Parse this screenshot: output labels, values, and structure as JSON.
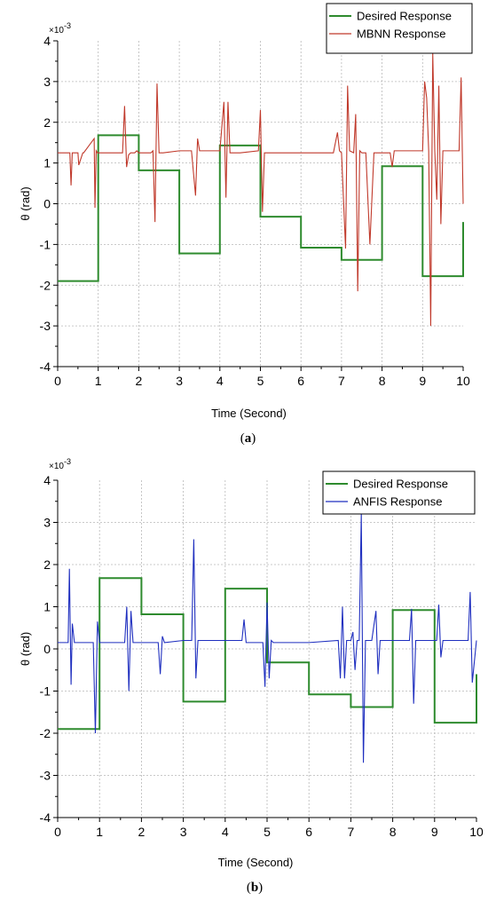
{
  "chart_data": [
    {
      "type": "line",
      "caption": "(a)",
      "xlabel": "Time (Second)",
      "ylabel": "θ (rad)",
      "y_multiplier": "×10",
      "y_multiplier_exp": "-3",
      "xlim": [
        0,
        10
      ],
      "ylim": [
        -4,
        4
      ],
      "xticks": [
        "0",
        "1",
        "2",
        "3",
        "4",
        "5",
        "6",
        "7",
        "8",
        "9",
        "10"
      ],
      "yticks": [
        "-4",
        "-3",
        "-2",
        "-1",
        "0",
        "1",
        "2",
        "3",
        "4"
      ],
      "grid": true,
      "legend_position": "top-right",
      "series": [
        {
          "name": "Desired Response",
          "color": "#2e8b2e",
          "step": true,
          "x": [
            0,
            1,
            2,
            3,
            4,
            5,
            6,
            7,
            8,
            9,
            10
          ],
          "y": [
            -1.9,
            1.68,
            0.82,
            -1.22,
            1.43,
            -0.32,
            -1.08,
            -1.38,
            0.92,
            -1.78,
            -0.45
          ]
        },
        {
          "name": "MBNN Response",
          "color": "#c0392b",
          "step": false,
          "x": [
            0,
            0.3,
            0.33,
            0.36,
            0.5,
            0.52,
            0.62,
            0.64,
            0.9,
            0.92,
            0.95,
            0.98,
            1.0,
            1.6,
            1.65,
            1.7,
            1.75,
            1.8,
            1.85,
            1.9,
            1.95,
            2.0,
            2.3,
            2.35,
            2.4,
            2.45,
            2.5,
            2.55,
            2.6,
            3.0,
            3.3,
            3.4,
            3.45,
            3.5,
            4.0,
            4.1,
            4.15,
            4.2,
            4.25,
            4.3,
            4.4,
            4.5,
            4.95,
            5.0,
            5.05,
            5.1,
            5.15,
            5.5,
            5.7,
            5.75,
            5.8,
            6.0,
            6.8,
            6.9,
            6.95,
            7.0,
            7.1,
            7.15,
            7.2,
            7.3,
            7.35,
            7.4,
            7.45,
            7.5,
            7.6,
            7.7,
            7.8,
            8.0,
            8.2,
            8.25,
            8.3,
            8.35,
            9.0,
            9.05,
            9.1,
            9.15,
            9.2,
            9.25,
            9.3,
            9.35,
            9.4,
            9.45,
            9.5,
            9.7,
            9.8,
            9.9,
            9.95,
            10.0
          ],
          "y": [
            1.25,
            1.25,
            0.45,
            1.25,
            1.25,
            0.95,
            1.25,
            1.25,
            1.6,
            -0.1,
            1.3,
            1.25,
            1.25,
            1.25,
            2.4,
            0.9,
            1.2,
            1.25,
            1.25,
            1.25,
            1.3,
            1.25,
            1.25,
            1.3,
            -0.45,
            2.95,
            1.25,
            1.25,
            1.25,
            1.3,
            1.3,
            0.2,
            1.6,
            1.3,
            1.3,
            2.5,
            0.15,
            2.5,
            1.25,
            1.25,
            1.25,
            1.25,
            1.3,
            2.3,
            -0.2,
            1.25,
            1.25,
            1.25,
            1.25,
            1.25,
            1.25,
            1.25,
            1.25,
            1.75,
            1.3,
            1.25,
            -1.1,
            2.9,
            1.3,
            1.25,
            2.2,
            -2.15,
            1.3,
            1.25,
            1.25,
            -1.0,
            1.25,
            1.25,
            1.25,
            0.9,
            1.3,
            1.3,
            1.3,
            3.0,
            2.6,
            1.3,
            -3.0,
            3.7,
            1.3,
            0.1,
            2.9,
            -0.5,
            1.3,
            1.3,
            1.3,
            1.3,
            3.1,
            0.0
          ]
        }
      ]
    },
    {
      "type": "line",
      "caption": "(b)",
      "xlabel": "Time (Second)",
      "ylabel": "θ (rad)",
      "y_multiplier": "×10",
      "y_multiplier_exp": "-3",
      "xlim": [
        0,
        10
      ],
      "ylim": [
        -4,
        4
      ],
      "xticks": [
        "0",
        "1",
        "2",
        "3",
        "4",
        "5",
        "6",
        "7",
        "8",
        "9",
        "10"
      ],
      "yticks": [
        "-4",
        "-3",
        "-2",
        "-1",
        "0",
        "1",
        "2",
        "3",
        "4"
      ],
      "grid": true,
      "legend_position": "top-right",
      "series": [
        {
          "name": "Desired Response",
          "color": "#2e8b2e",
          "step": true,
          "x": [
            0,
            1,
            2,
            3,
            4,
            5,
            6,
            7,
            8,
            9,
            10
          ],
          "y": [
            -1.9,
            1.68,
            0.82,
            -1.25,
            1.43,
            -0.32,
            -1.08,
            -1.38,
            0.92,
            -1.75,
            -0.6
          ]
        },
        {
          "name": "ANFIS Response",
          "color": "#1f2fbf",
          "step": false,
          "x": [
            0,
            0.25,
            0.28,
            0.32,
            0.35,
            0.4,
            0.85,
            0.9,
            0.95,
            1.0,
            1.6,
            1.65,
            1.7,
            1.75,
            1.8,
            1.85,
            2.4,
            2.45,
            2.5,
            2.55,
            3.0,
            3.2,
            3.25,
            3.3,
            3.35,
            3.4,
            3.45,
            3.5,
            4.0,
            4.4,
            4.45,
            4.5,
            4.9,
            4.95,
            5.0,
            5.05,
            5.1,
            5.15,
            5.5,
            5.7,
            5.75,
            5.8,
            6.0,
            6.7,
            6.75,
            6.8,
            6.85,
            6.9,
            7.0,
            7.05,
            7.1,
            7.15,
            7.2,
            7.25,
            7.3,
            7.35,
            7.4,
            7.45,
            7.5,
            7.6,
            7.65,
            7.7,
            7.75,
            7.8,
            8.0,
            8.4,
            8.45,
            8.5,
            8.55,
            8.6,
            9.0,
            9.05,
            9.1,
            9.15,
            9.2,
            9.25,
            9.3,
            9.35,
            9.4,
            9.45,
            9.8,
            9.85,
            9.9,
            10.0
          ],
          "y": [
            0.15,
            0.15,
            1.9,
            -0.85,
            0.6,
            0.15,
            0.15,
            -2.0,
            0.65,
            0.15,
            0.15,
            1.0,
            -1.0,
            0.9,
            0.15,
            0.15,
            0.15,
            -0.6,
            0.3,
            0.15,
            0.2,
            0.2,
            2.6,
            -0.7,
            0.2,
            0.2,
            0.2,
            0.2,
            0.2,
            0.2,
            0.7,
            0.15,
            0.15,
            -0.9,
            1.1,
            -0.7,
            0.2,
            0.15,
            0.15,
            0.15,
            0.15,
            0.15,
            0.15,
            0.2,
            -0.7,
            1.0,
            -0.7,
            0.2,
            0.2,
            0.4,
            -0.5,
            0.2,
            0.2,
            3.2,
            -2.7,
            0.2,
            0.2,
            0.2,
            0.2,
            0.9,
            -0.6,
            0.2,
            0.2,
            0.2,
            0.2,
            0.2,
            0.95,
            -1.3,
            0.2,
            0.2,
            0.2,
            0.2,
            1.05,
            -0.2,
            0.2,
            0.2,
            0.2,
            0.2,
            0.2,
            0.2,
            0.2,
            1.35,
            -0.8,
            0.2
          ]
        }
      ]
    }
  ]
}
